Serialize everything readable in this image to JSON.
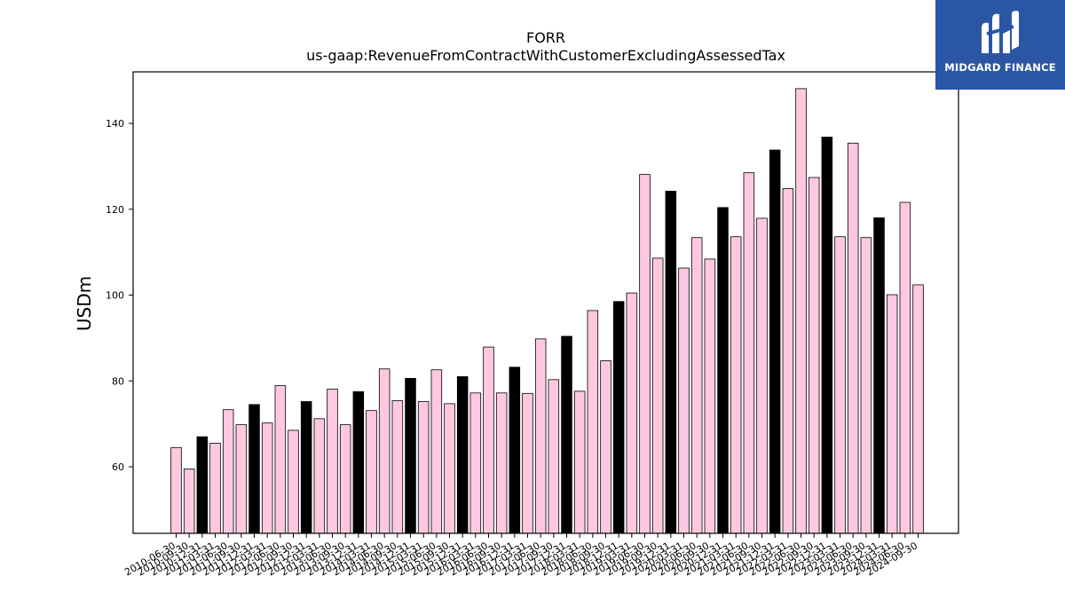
{
  "brand": {
    "name": "MIDGARD FINANCE",
    "bg_color": "#2b56a6",
    "icon": "midgard-logo-icon"
  },
  "chart_data": {
    "type": "bar",
    "title": "FORR",
    "subtitle": "us-gaap:RevenueFromContractWithCustomerExcludingAssessedTax",
    "xlabel": "",
    "ylabel": "USDm",
    "ylim": [
      44.5,
      152
    ],
    "yticks": [
      60,
      80,
      100,
      120,
      140
    ],
    "grid": false,
    "colors": {
      "quarter": "#ffc8e0",
      "annual": "#000000",
      "edge": "#000000"
    },
    "categories": [
      "2010-06-30",
      "2010-09-30",
      "2010-12-31",
      "2011-03-31",
      "2011-06-30",
      "2011-09-30",
      "2011-12-31",
      "2012-03-31",
      "2012-06-30",
      "2012-09-30",
      "2012-12-31",
      "2013-03-31",
      "2013-06-30",
      "2013-09-30",
      "2013-12-31",
      "2014-03-31",
      "2014-06-30",
      "2014-09-30",
      "2014-12-31",
      "2015-03-31",
      "2015-06-30",
      "2015-09-30",
      "2015-12-31",
      "2016-03-31",
      "2016-06-30",
      "2016-09-30",
      "2016-12-31",
      "2017-03-31",
      "2017-06-30",
      "2017-09-30",
      "2017-12-31",
      "2018-03-31",
      "2018-06-30",
      "2018-09-30",
      "2018-12-31",
      "2019-03-31",
      "2019-06-30",
      "2019-09-30",
      "2019-12-31",
      "2020-03-31",
      "2020-06-30",
      "2020-09-30",
      "2020-12-31",
      "2021-03-31",
      "2021-06-30",
      "2021-09-30",
      "2021-12-31",
      "2022-03-31",
      "2022-06-30",
      "2022-09-30",
      "2022-12-31",
      "2023-03-31",
      "2023-06-30",
      "2023-09-30",
      "2023-12-31",
      "2024-03-31",
      "2024-06-30",
      "2024-09-30"
    ],
    "values": [
      64.5,
      59.5,
      67.0,
      65.5,
      73.3,
      69.8,
      74.5,
      70.2,
      78.9,
      68.5,
      75.2,
      71.2,
      78.1,
      69.8,
      77.5,
      73.1,
      82.8,
      75.4,
      80.6,
      75.2,
      82.6,
      74.7,
      81.0,
      77.2,
      87.9,
      77.2,
      83.2,
      77.1,
      89.8,
      80.3,
      90.4,
      77.6,
      96.4,
      84.7,
      98.5,
      100.5,
      128.1,
      108.6,
      124.2,
      106.3,
      113.4,
      108.4,
      120.4,
      113.6,
      128.5,
      117.9,
      133.8,
      124.8,
      148.1,
      127.4,
      136.8,
      113.6,
      135.4,
      113.4,
      118.0,
      100.1,
      121.6,
      102.4
    ],
    "annual_flags": [
      0,
      0,
      1,
      0,
      0,
      0,
      1,
      0,
      0,
      0,
      1,
      0,
      0,
      0,
      1,
      0,
      0,
      0,
      1,
      0,
      0,
      0,
      1,
      0,
      0,
      0,
      1,
      0,
      0,
      0,
      1,
      0,
      0,
      0,
      1,
      0,
      0,
      0,
      1,
      0,
      0,
      0,
      1,
      0,
      0,
      0,
      1,
      0,
      0,
      0,
      1,
      0,
      0,
      0,
      1,
      0,
      0,
      0
    ]
  }
}
